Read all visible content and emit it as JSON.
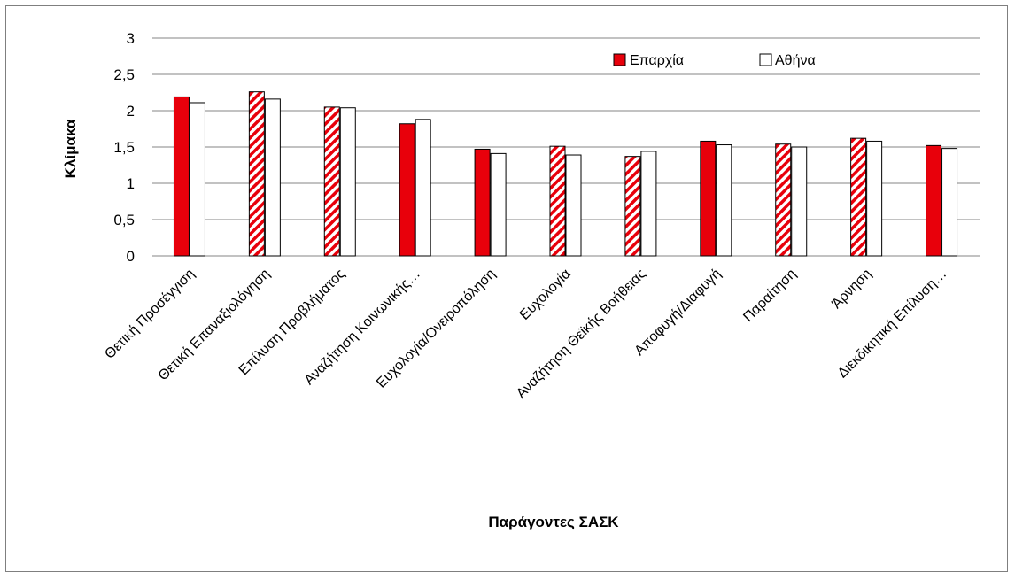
{
  "chart_data": {
    "type": "bar",
    "xlabel": "Παράγοντες ΣΑΣΚ",
    "ylabel": "Κλίμακα",
    "ylim": [
      0,
      3
    ],
    "yticks": [
      "0",
      "0,5",
      "1",
      "1,5",
      "2",
      "2,5",
      "3"
    ],
    "grid": true,
    "legend_position": "top-right",
    "categories": [
      "Θετική Προσέγγιση",
      "Θετική Επαναξιολόγηση",
      "Επίλυση Προβλήματος",
      "Αναζήτηση Κοινωνικής…",
      "Ευχολογία/Ονειροπόληση",
      "Ευχολογία",
      "Αναζήτηση Θεϊκής Βοήθειας",
      "Αποφυγή/Διαφυγή",
      "Παραίτηση",
      "Άρνηση",
      "Διεκδικητική Επίλυση…"
    ],
    "series": [
      {
        "name": "Επαρχία",
        "color": "#e8000b",
        "values": [
          2.19,
          2.26,
          2.05,
          1.82,
          1.47,
          1.51,
          1.37,
          1.58,
          1.54,
          1.62,
          1.52
        ],
        "hatched": [
          false,
          true,
          true,
          false,
          false,
          true,
          true,
          false,
          true,
          true,
          false
        ]
      },
      {
        "name": "Αθήνα",
        "color": "#ffffff",
        "values": [
          2.11,
          2.16,
          2.04,
          1.88,
          1.41,
          1.39,
          1.44,
          1.53,
          1.5,
          1.58,
          1.48
        ]
      }
    ]
  }
}
